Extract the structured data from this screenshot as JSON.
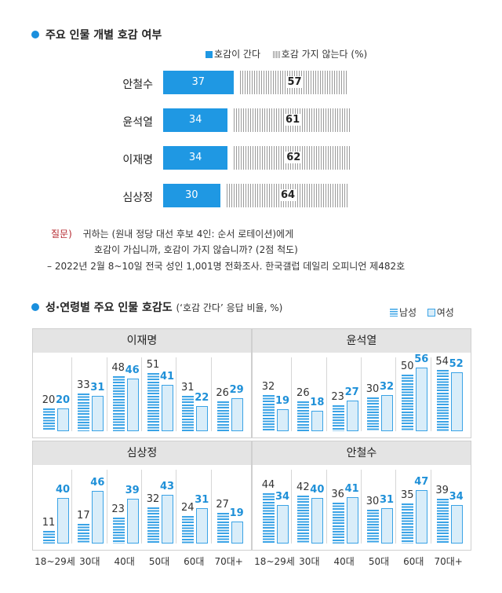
{
  "section1": {
    "title": "주요 인물 개별 호감 여부",
    "legend_yes": "호감이 간다",
    "legend_no": "호감 가지 않는다",
    "legend_unit": "(%)"
  },
  "section2": {
    "title": "성·연령별 주요 인물 호감도",
    "subtitle": "(‘호감 간다’ 응답 비율, %)",
    "legend_male": "남성",
    "legend_female": "여성"
  },
  "notes": {
    "q_label": "질문)",
    "q_line1": "귀하는 (원내 정당 대선 후보 4인: 순서 로테이션)에게",
    "q_line2": "호감이 가십니까, 호감이 가지 않습니까? (2점 척도)",
    "source": "– 2022년 2월 8~10일 전국 성인 1,001명 전화조사. 한국갤럽 데일리 오피니언 제482호"
  },
  "colors": {
    "accent": "#1f98e3",
    "stripe": "#9a9a9a",
    "female_fill": "#d9edf9"
  },
  "chart_data": [
    {
      "type": "bar",
      "orientation": "horizontal-stacked",
      "categories": [
        "안철수",
        "윤석열",
        "이재명",
        "심상정"
      ],
      "series": [
        {
          "name": "호감이 간다",
          "values": [
            37,
            34,
            34,
            30
          ]
        },
        {
          "name": "호감 가지 않는다",
          "values": [
            57,
            61,
            62,
            64
          ]
        }
      ],
      "xlim": [
        0,
        100
      ]
    },
    {
      "type": "bar",
      "panels": [
        {
          "title": "이재명",
          "male": [
            20,
            33,
            48,
            51,
            31,
            26
          ],
          "female": [
            20,
            31,
            46,
            41,
            22,
            29
          ]
        },
        {
          "title": "윤석열",
          "male": [
            32,
            26,
            23,
            30,
            50,
            54
          ],
          "female": [
            19,
            18,
            27,
            32,
            56,
            52
          ]
        },
        {
          "title": "심상정",
          "male": [
            11,
            17,
            23,
            32,
            24,
            27
          ],
          "female": [
            40,
            46,
            39,
            43,
            31,
            19
          ]
        },
        {
          "title": "안철수",
          "male": [
            44,
            42,
            36,
            30,
            35,
            39
          ],
          "female": [
            34,
            40,
            41,
            31,
            47,
            34
          ]
        }
      ],
      "categories": [
        "18~29세",
        "30대",
        "40대",
        "50대",
        "60대",
        "70대+"
      ],
      "series_names": [
        "남성",
        "여성"
      ],
      "ylim": [
        0,
        60
      ]
    }
  ]
}
